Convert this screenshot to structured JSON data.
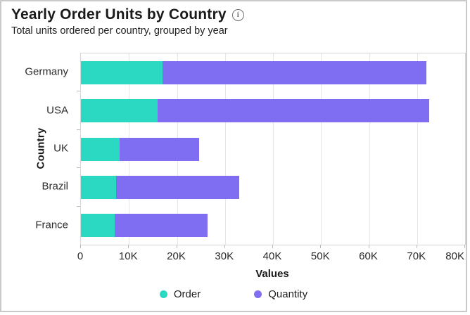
{
  "header": {
    "title": "Yearly Order Units by Country",
    "subtitle": "Total units ordered per country, grouped by year",
    "info_icon": "info-circle"
  },
  "chart_data": {
    "type": "bar",
    "orientation": "horizontal",
    "stacked": true,
    "title": "Yearly Order Units by Country",
    "subtitle": "Total units ordered per country, grouped by year",
    "categories": [
      "Germany",
      "USA",
      "UK",
      "Brazil",
      "France"
    ],
    "series": [
      {
        "name": "Order",
        "color": "#2bd9c2",
        "values": [
          17000,
          16000,
          8000,
          7300,
          7000
        ]
      },
      {
        "name": "Quantity",
        "color": "#806ef2",
        "values": [
          55000,
          56500,
          16600,
          25700,
          19400
        ]
      }
    ],
    "totals": [
      72000,
      72500,
      24600,
      33000,
      26400
    ],
    "xlabel": "Values",
    "ylabel": "Country",
    "xlim": [
      0,
      80000
    ],
    "xticks": [
      "0",
      "10K",
      "20K",
      "30K",
      "40K",
      "50K",
      "60K",
      "70K",
      "80K"
    ],
    "grid": true,
    "legend_position": "bottom",
    "colors": {
      "grid": "#e6e6e6",
      "plot_border": "#d6d6d6",
      "card_border": "#c9c9c9",
      "text": "#1f1f1f"
    }
  }
}
